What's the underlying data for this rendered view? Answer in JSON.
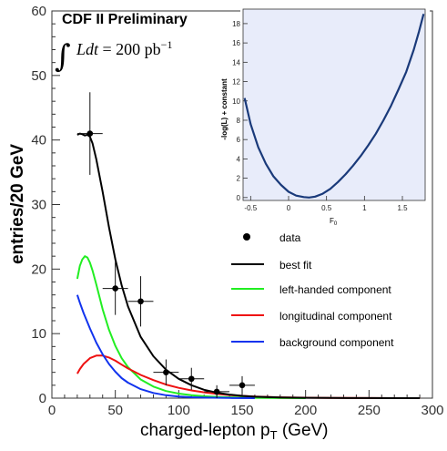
{
  "chart_data": {
    "type": "line",
    "title": "CDF II Preliminary",
    "luminosity": {
      "int": "∫",
      "lhs": "Ldt",
      "eq": " = 200 ",
      "unit": "pb",
      "exp": "−1"
    },
    "xlabel": {
      "main": "charged-lepton p",
      "sub": "T",
      "tail": " (GeV)"
    },
    "ylabel": "entries/20 GeV",
    "xlim": [
      0,
      300
    ],
    "ylim": [
      0,
      60
    ],
    "xticks": [
      0,
      50,
      100,
      150,
      200,
      250,
      300
    ],
    "yticks": [
      0,
      10,
      20,
      30,
      40,
      50,
      60
    ],
    "data": {
      "name": "data",
      "points": [
        {
          "x": 30,
          "y": 41,
          "xerr": 10,
          "yerr": 6.4
        },
        {
          "x": 50,
          "y": 17,
          "xerr": 10,
          "yerr": 4.1
        },
        {
          "x": 70,
          "y": 15,
          "xerr": 10,
          "yerr": 3.9
        },
        {
          "x": 90,
          "y": 4,
          "xerr": 10,
          "yerr": 2.0
        },
        {
          "x": 110,
          "y": 3,
          "xerr": 10,
          "yerr": 1.7
        },
        {
          "x": 130,
          "y": 1,
          "xerr": 10,
          "yerr": 1.0
        },
        {
          "x": 150,
          "y": 2,
          "xerr": 10,
          "yerr": 1.4
        }
      ]
    },
    "series": [
      {
        "name": "best fit",
        "color": "#000000",
        "x": [
          20,
          22,
          24,
          26,
          28,
          30,
          32,
          35,
          40,
          45,
          50,
          55,
          60,
          70,
          80,
          90,
          100,
          110,
          120,
          130,
          140,
          150,
          160,
          180,
          200,
          220,
          250,
          270,
          290
        ],
        "y": [
          40.8,
          41.0,
          40.9,
          40.7,
          40.8,
          40.5,
          39.5,
          37.0,
          32.0,
          26.5,
          21.5,
          17.5,
          14.2,
          9.5,
          6.5,
          4.4,
          3.0,
          2.0,
          1.3,
          0.85,
          0.55,
          0.35,
          0.22,
          0.1,
          0.05,
          0.03,
          0.01,
          0.0,
          0.0
        ]
      },
      {
        "name": "left-handed component",
        "color": "#22ee22",
        "x": [
          20,
          22,
          24,
          26,
          28,
          30,
          32,
          35,
          40,
          45,
          50,
          55,
          60,
          70,
          80,
          90,
          100,
          110,
          120,
          130,
          140,
          150,
          160,
          180,
          200
        ],
        "y": [
          18.5,
          20.5,
          21.5,
          22.0,
          21.8,
          21.0,
          19.8,
          17.6,
          13.8,
          10.6,
          8.1,
          6.2,
          4.8,
          2.9,
          1.8,
          1.1,
          0.7,
          0.45,
          0.3,
          0.2,
          0.12,
          0.08,
          0.05,
          0.02,
          0.0
        ]
      },
      {
        "name": "longitudinal component",
        "color": "#ee1111",
        "x": [
          20,
          22,
          25,
          30,
          35,
          40,
          45,
          50,
          55,
          60,
          70,
          80,
          90,
          100,
          110,
          120,
          130,
          140,
          150,
          160,
          180,
          200,
          220,
          250,
          280,
          290
        ],
        "y": [
          3.8,
          4.5,
          5.3,
          6.2,
          6.6,
          6.6,
          6.3,
          5.8,
          5.2,
          4.6,
          3.6,
          2.8,
          2.1,
          1.6,
          1.2,
          0.9,
          0.66,
          0.48,
          0.35,
          0.25,
          0.13,
          0.07,
          0.04,
          0.02,
          0.0,
          0.0
        ]
      },
      {
        "name": "background component",
        "color": "#1133ee",
        "x": [
          20,
          22,
          25,
          30,
          35,
          40,
          45,
          50,
          55,
          60,
          70,
          80,
          90,
          100,
          110,
          120,
          140,
          160
        ],
        "y": [
          16.0,
          14.8,
          13.2,
          10.8,
          8.6,
          6.8,
          5.3,
          4.1,
          3.1,
          2.4,
          1.4,
          0.8,
          0.45,
          0.25,
          0.14,
          0.08,
          0.03,
          0.0
        ]
      }
    ],
    "legend_position": "right",
    "inset": {
      "type": "line",
      "xlabel": {
        "main": "F",
        "sub": "0"
      },
      "ylabel": "-log(L) + constant",
      "xlim": [
        -0.6,
        1.8
      ],
      "ylim": [
        -0.3,
        19.5
      ],
      "xticks": [
        "-0.5",
        "0",
        "0.5",
        "1",
        "1.5"
      ],
      "yticks": [
        0,
        2,
        4,
        6,
        8,
        10,
        12,
        14,
        16,
        18
      ],
      "background_color": "#e8ecfa",
      "curve_color": "#1a3a7a",
      "curve": {
        "x": [
          -0.58,
          -0.5,
          -0.4,
          -0.3,
          -0.2,
          -0.1,
          0.0,
          0.1,
          0.2,
          0.27,
          0.35,
          0.45,
          0.55,
          0.65,
          0.75,
          0.85,
          0.95,
          1.05,
          1.15,
          1.25,
          1.35,
          1.45,
          1.55,
          1.65,
          1.72,
          1.78
        ],
        "y": [
          10.3,
          7.6,
          5.2,
          3.5,
          2.2,
          1.3,
          0.6,
          0.2,
          0.05,
          0.0,
          0.1,
          0.4,
          0.9,
          1.6,
          2.4,
          3.3,
          4.3,
          5.4,
          6.6,
          8.0,
          9.5,
          11.2,
          13.0,
          15.3,
          17.2,
          19.0
        ]
      }
    }
  }
}
